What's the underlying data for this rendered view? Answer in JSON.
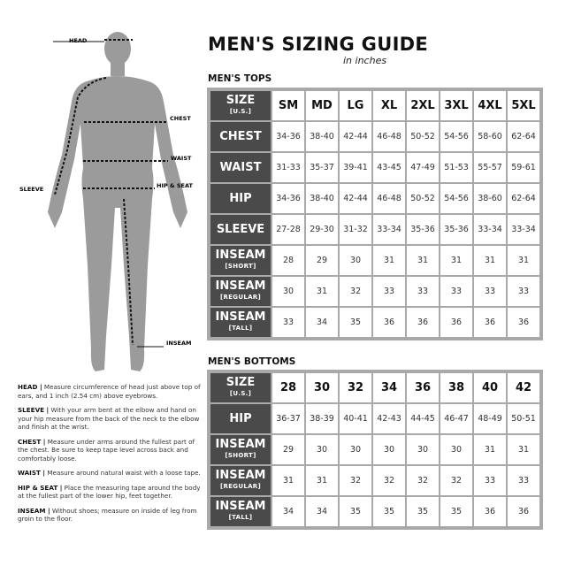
{
  "title": "MEN'S SIZING GUIDE",
  "subtitle": "in inches",
  "figure_labels": {
    "head": "HEAD",
    "chest": "CHEST",
    "waist": "WAIST",
    "hip_seat": "HIP & SEAT",
    "sleeve": "SLEEVE",
    "inseam": "INSEAM"
  },
  "tops": {
    "section_title": "MEN'S TOPS",
    "header": {
      "label": "SIZE",
      "sub": "[U.S.]",
      "sizes": [
        "SM",
        "MD",
        "LG",
        "XL",
        "2XL",
        "3XL",
        "4XL",
        "5XL"
      ]
    },
    "rows": [
      {
        "label": "CHEST",
        "sub": "",
        "values": [
          "34-36",
          "38-40",
          "42-44",
          "46-48",
          "50-52",
          "54-56",
          "58-60",
          "62-64"
        ]
      },
      {
        "label": "WAIST",
        "sub": "",
        "values": [
          "31-33",
          "35-37",
          "39-41",
          "43-45",
          "47-49",
          "51-53",
          "55-57",
          "59-61"
        ]
      },
      {
        "label": "HIP",
        "sub": "",
        "values": [
          "34-36",
          "38-40",
          "42-44",
          "46-48",
          "50-52",
          "54-56",
          "38-60",
          "62-64"
        ]
      },
      {
        "label": "SLEEVE",
        "sub": "",
        "values": [
          "27-28",
          "29-30",
          "31-32",
          "33-34",
          "35-36",
          "35-36",
          "33-34",
          "33-34"
        ]
      },
      {
        "label": "INSEAM",
        "sub": "[SHORT]",
        "values": [
          "28",
          "29",
          "30",
          "31",
          "31",
          "31",
          "31",
          "31"
        ]
      },
      {
        "label": "INSEAM",
        "sub": "[REGULAR]",
        "values": [
          "30",
          "31",
          "32",
          "33",
          "33",
          "33",
          "33",
          "33"
        ]
      },
      {
        "label": "INSEAM",
        "sub": "[TALL]",
        "values": [
          "33",
          "34",
          "35",
          "36",
          "36",
          "36",
          "36",
          "36"
        ]
      }
    ]
  },
  "bottoms": {
    "section_title": "MEN'S BOTTOMS",
    "header": {
      "label": "SIZE",
      "sub": "[U.S.]",
      "sizes": [
        "28",
        "30",
        "32",
        "34",
        "36",
        "38",
        "40",
        "42"
      ]
    },
    "rows": [
      {
        "label": "HIP",
        "sub": "",
        "values": [
          "36-37",
          "38-39",
          "40-41",
          "42-43",
          "44-45",
          "46-47",
          "48-49",
          "50-51"
        ]
      },
      {
        "label": "INSEAM",
        "sub": "[SHORT]",
        "values": [
          "29",
          "30",
          "30",
          "30",
          "30",
          "30",
          "31",
          "31"
        ]
      },
      {
        "label": "INSEAM",
        "sub": "[REGULAR]",
        "values": [
          "31",
          "31",
          "32",
          "32",
          "32",
          "32",
          "33",
          "33"
        ]
      },
      {
        "label": "INSEAM",
        "sub": "[TALL]",
        "values": [
          "34",
          "34",
          "35",
          "35",
          "35",
          "35",
          "36",
          "36"
        ]
      }
    ]
  },
  "instructions": [
    {
      "term": "HEAD |",
      "text": " Measure circumference of head just above top of ears, and 1 inch (2.54 cm) above eyebrows."
    },
    {
      "term": "SLEEVE |",
      "text": " With your arm bent at the elbow and hand on your hip measure from the back of the neck to the elbow and finish at the wrist."
    },
    {
      "term": "CHEST |",
      "text": " Measure under arms around the fullest part of the chest. Be sure to keep tape level across back and comfortably loose."
    },
    {
      "term": "WAIST |",
      "text": " Measure around natural waist with a loose tape."
    },
    {
      "term": "HIP & SEAT |",
      "text": " Place the measuring tape around the body at the fullest part of the lower hip, feet together."
    },
    {
      "term": "INSEAM |",
      "text": " Without shoes; measure on inside of leg from groin to the floor."
    }
  ],
  "colors": {
    "label_bg": "#4a4a4a",
    "border": "#a9a9a9",
    "figure": "#9b9b9b"
  }
}
